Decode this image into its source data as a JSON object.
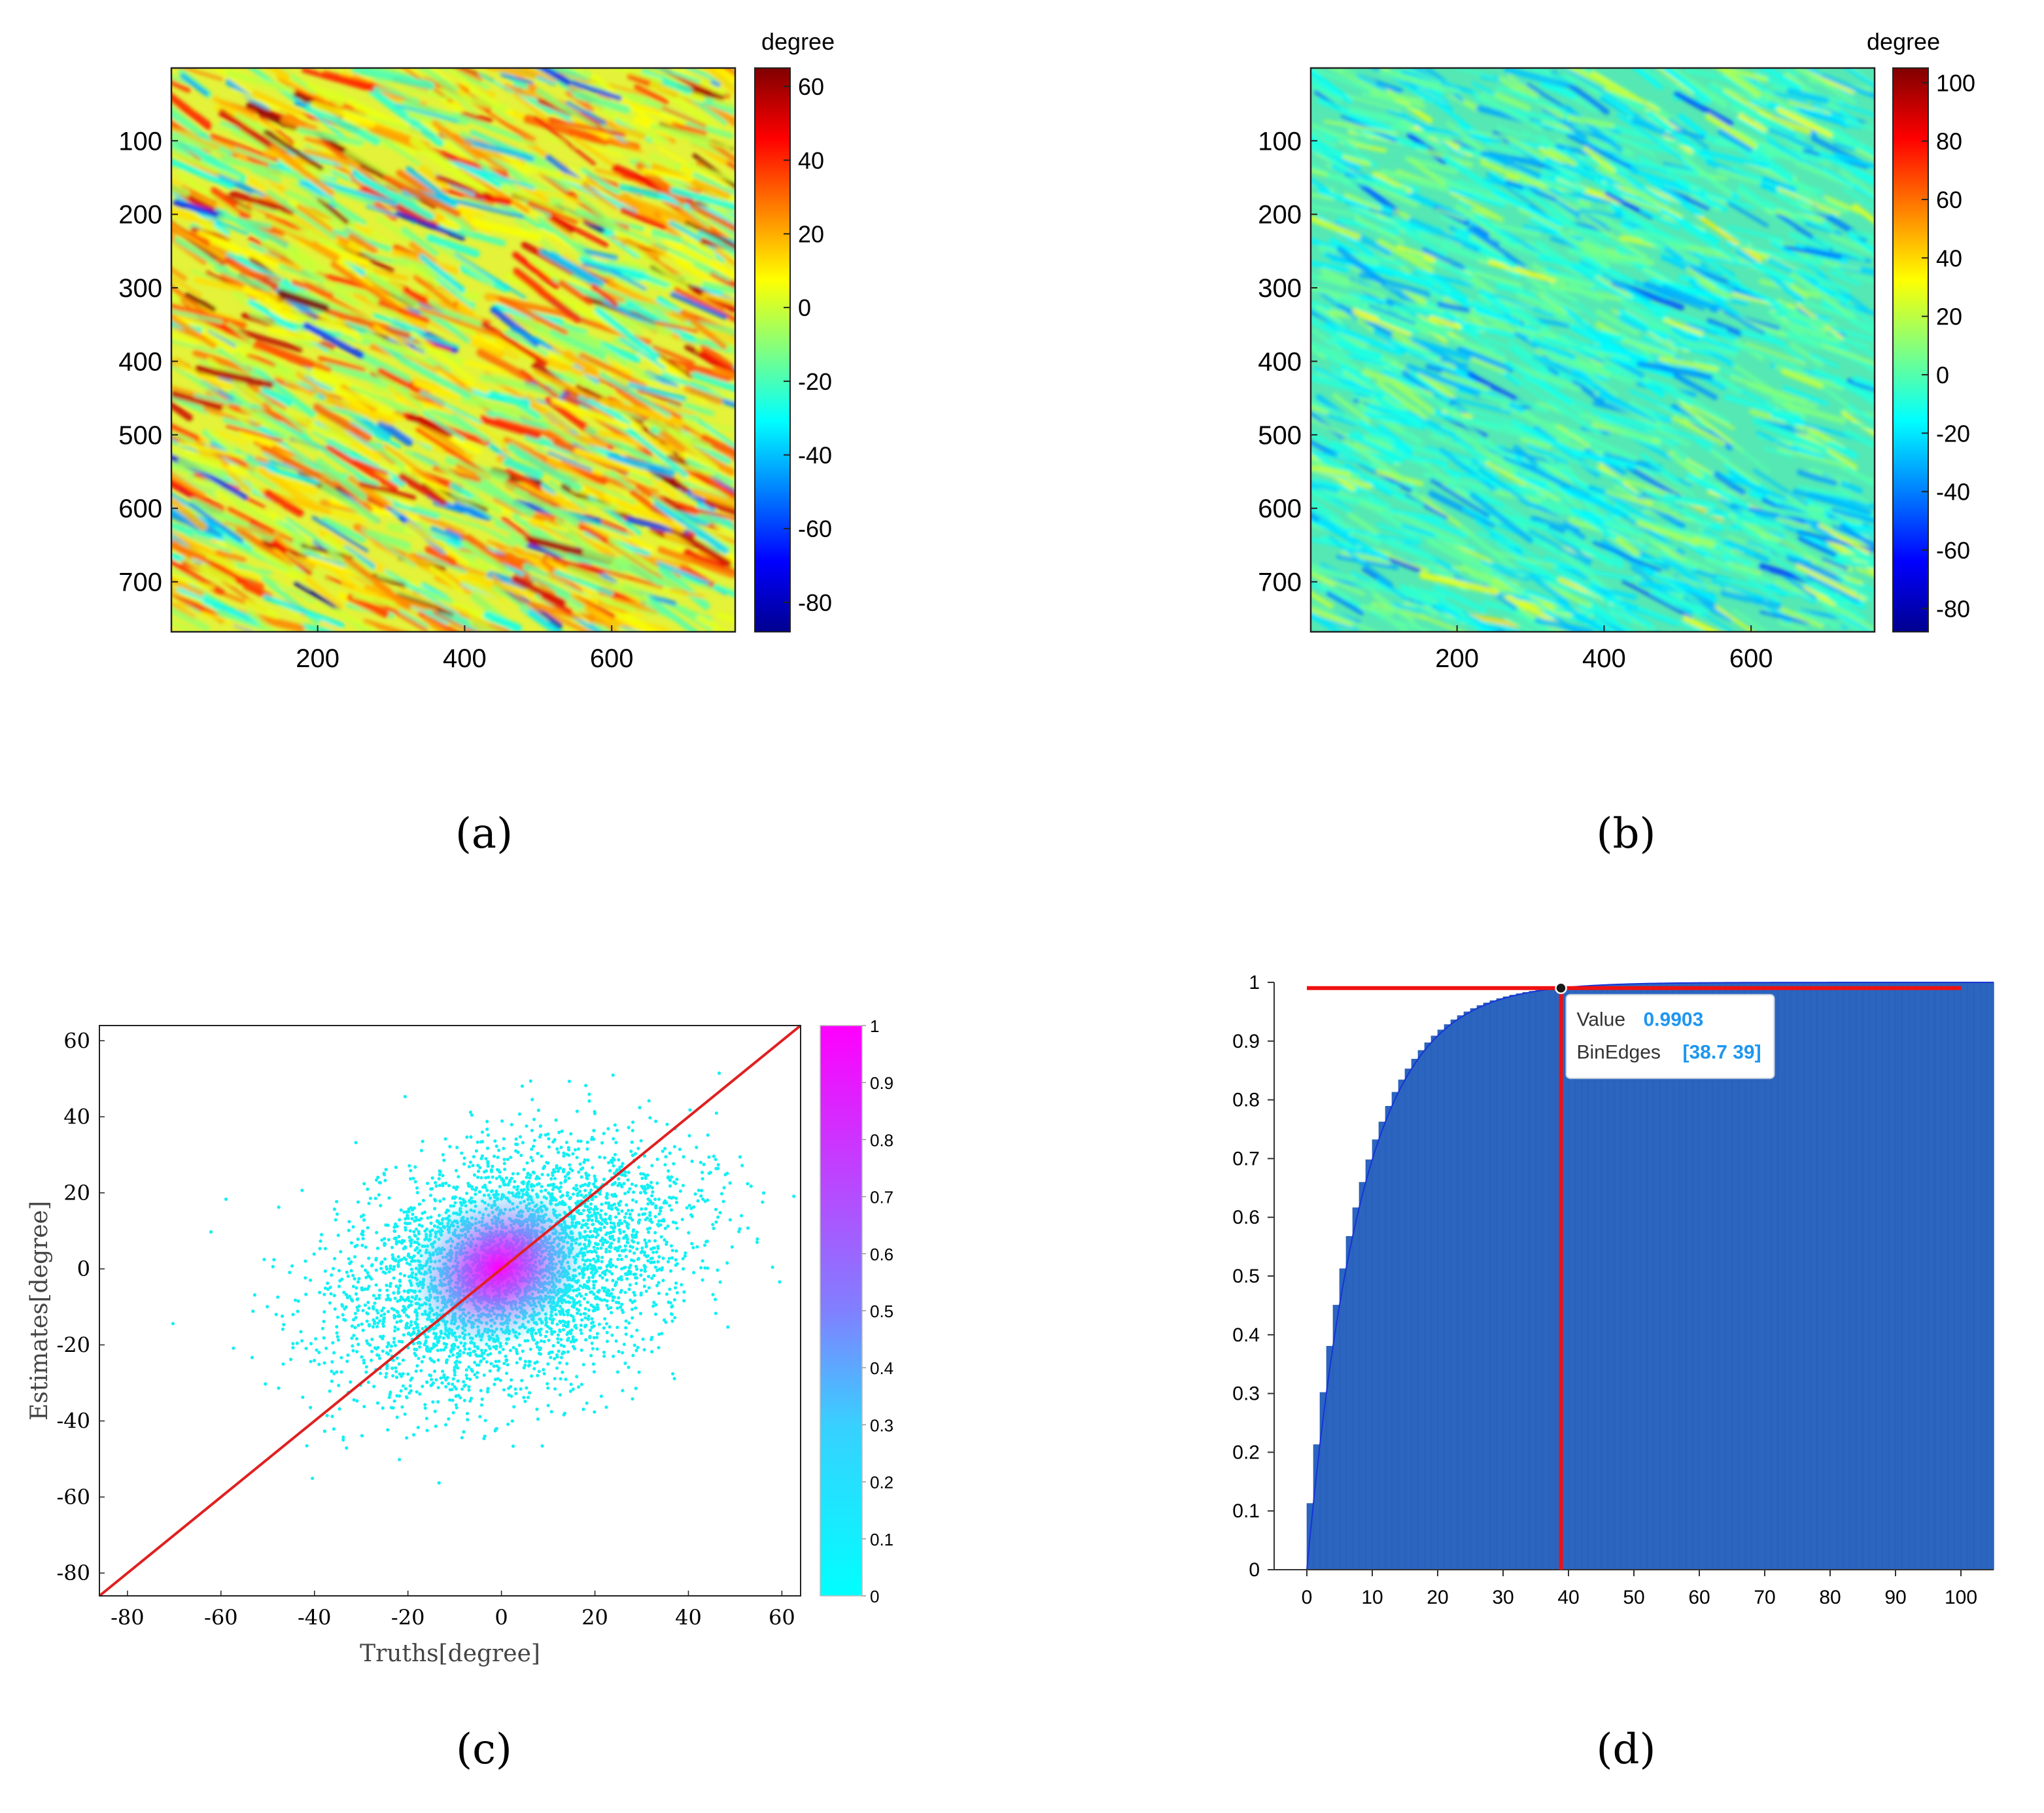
{
  "colors": {
    "jet": [
      "#00008f",
      "#0000ff",
      "#0080ff",
      "#00ffff",
      "#80ff80",
      "#ffff00",
      "#ff8000",
      "#ff0000",
      "#800000"
    ],
    "density": [
      "#00ffff",
      "#40c8ff",
      "#8080ff",
      "#c040ff",
      "#ff00ff"
    ],
    "fit_line": "#e02020",
    "bar_fill": "#2b65c0",
    "cursor_line": "#ee1111",
    "datatip_value": "#1e96f0"
  },
  "chart_data": [
    {
      "panel": "a",
      "type": "heatmap",
      "label": "(a)",
      "colorbar_title": "degree",
      "xlim": [
        1,
        768
      ],
      "ylim": [
        1,
        768
      ],
      "x_ticks": [
        "200",
        "400",
        "600"
      ],
      "y_ticks": [
        "100",
        "200",
        "300",
        "400",
        "500",
        "600",
        "700"
      ],
      "clim": [
        -88,
        65
      ],
      "colorbar_ticks": [
        "60",
        "40",
        "20",
        "0",
        "-20",
        "-40",
        "-60",
        "-80"
      ]
    },
    {
      "panel": "b",
      "type": "heatmap",
      "label": "(b)",
      "colorbar_title": "degree",
      "xlim": [
        1,
        768
      ],
      "ylim": [
        1,
        768
      ],
      "x_ticks": [
        "200",
        "400",
        "600"
      ],
      "y_ticks": [
        "100",
        "200",
        "300",
        "400",
        "500",
        "600",
        "700"
      ],
      "clim": [
        -88,
        105
      ],
      "colorbar_ticks": [
        "100",
        "80",
        "60",
        "40",
        "20",
        "0",
        "-20",
        "-40",
        "-60",
        "-80"
      ]
    },
    {
      "panel": "c",
      "type": "scatter",
      "label": "(c)",
      "xlabel": "Truths[degree]",
      "ylabel": "Estimates[degree]",
      "xlim": [
        -86,
        64
      ],
      "ylim": [
        -86,
        64
      ],
      "x_ticks": [
        "-80",
        "-60",
        "-40",
        "-20",
        "0",
        "20",
        "40",
        "60"
      ],
      "y_ticks": [
        "60",
        "40",
        "20",
        "0",
        "-20",
        "-40",
        "-60",
        "-80"
      ],
      "fit_line": [
        [
          -86,
          -86
        ],
        [
          64,
          64
        ]
      ],
      "clim": [
        0,
        1
      ],
      "colorbar_ticks": [
        "1",
        "0.9",
        "0.8",
        "0.7",
        "0.6",
        "0.5",
        "0.4",
        "0.3",
        "0.2",
        "0.1",
        "0"
      ]
    },
    {
      "panel": "d",
      "type": "bar",
      "label": "(d)",
      "xlim": [
        -5,
        105
      ],
      "ylim": [
        0,
        1
      ],
      "x_ticks": [
        "0",
        "10",
        "20",
        "30",
        "40",
        "50",
        "60",
        "70",
        "80",
        "90",
        "100"
      ],
      "y_ticks": [
        "1",
        "0.9",
        "0.8",
        "0.7",
        "0.6",
        "0.5",
        "0.4",
        "0.3",
        "0.2",
        "0.1",
        "0"
      ],
      "bin_width": 0.3,
      "bin_range": [
        0,
        105
      ],
      "cdf_scale": 8.35,
      "cursor": {
        "x": 38.85,
        "y": 0.9903
      },
      "hline": {
        "y": 0.9903,
        "x_range": [
          0,
          100
        ]
      },
      "datatip": {
        "value_label": "Value",
        "value": "0.9903",
        "binedges_label": "BinEdges",
        "binedges": "[38.7 39]"
      }
    }
  ]
}
